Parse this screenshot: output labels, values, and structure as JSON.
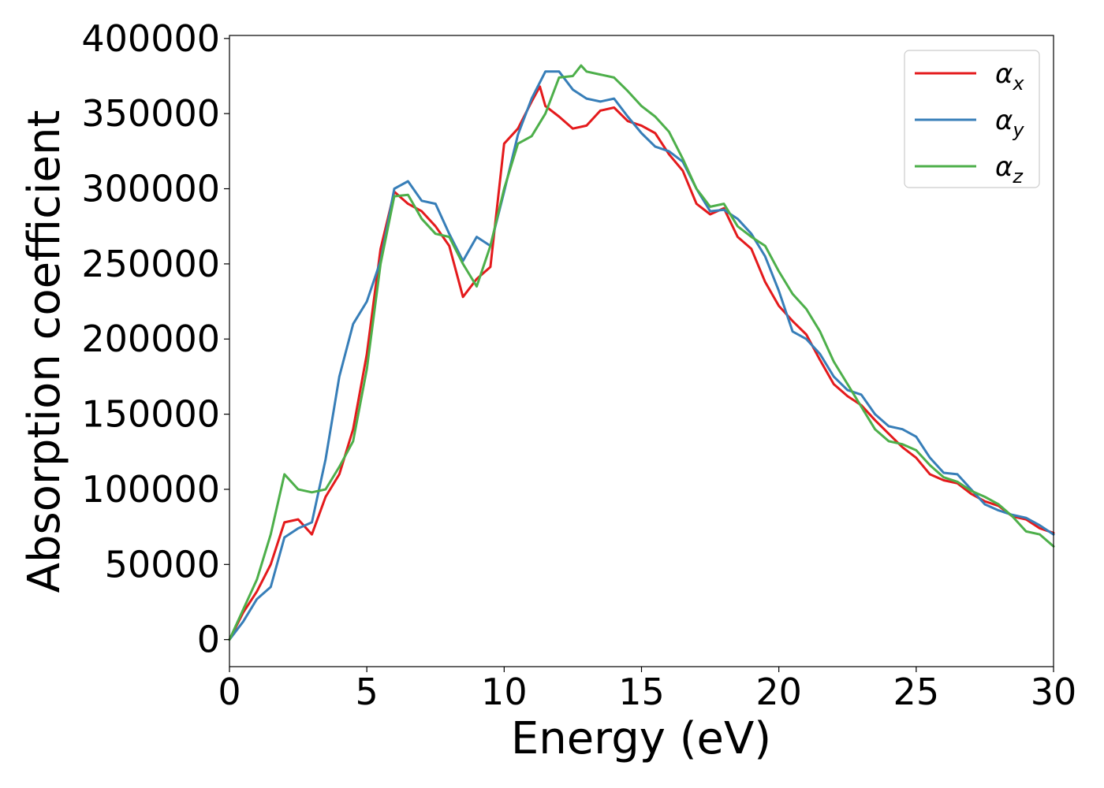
{
  "chart_data": {
    "type": "line",
    "title": "",
    "xlabel": "Energy (eV)",
    "ylabel": "Absorption coefficient",
    "xlim": [
      0,
      30
    ],
    "ylim": [
      -18000,
      402000
    ],
    "xticks": [
      0,
      5,
      10,
      15,
      20,
      25,
      30
    ],
    "yticks": [
      0,
      50000,
      100000,
      150000,
      200000,
      250000,
      300000,
      350000,
      400000
    ],
    "grid": false,
    "legend_position": "top-right",
    "series": [
      {
        "name": "α",
        "subscript": "x",
        "color": "#e41a1c",
        "x": [
          0,
          0.5,
          1,
          1.5,
          2,
          2.5,
          3,
          3.5,
          4,
          4.5,
          5,
          5.5,
          6,
          6.5,
          7,
          7.5,
          8,
          8.5,
          9,
          9.5,
          10,
          10.5,
          11,
          11.3,
          11.5,
          12,
          12.5,
          13,
          13.5,
          14,
          14.5,
          15,
          15.5,
          16,
          16.5,
          17,
          17.5,
          18,
          18.5,
          19,
          19.5,
          20,
          20.5,
          21,
          21.5,
          22,
          22.5,
          23,
          23.5,
          24,
          24.5,
          25,
          25.5,
          26,
          26.5,
          27,
          27.5,
          28,
          28.5,
          29,
          29.5,
          30
        ],
        "y": [
          0,
          18000,
          32000,
          50000,
          78000,
          80000,
          70000,
          95000,
          110000,
          140000,
          190000,
          260000,
          298000,
          290000,
          285000,
          275000,
          262000,
          228000,
          240000,
          248000,
          330000,
          340000,
          358000,
          368000,
          355000,
          348000,
          340000,
          342000,
          352000,
          354000,
          345000,
          342000,
          337000,
          323000,
          312000,
          290000,
          283000,
          287000,
          268000,
          260000,
          238000,
          222000,
          212000,
          203000,
          186000,
          170000,
          162000,
          156000,
          146000,
          137000,
          128000,
          121000,
          110000,
          106000,
          104000,
          97000,
          92000,
          89000,
          82000,
          80000,
          74000,
          71000
        ]
      },
      {
        "name": "α",
        "subscript": "y",
        "color": "#377eb8",
        "x": [
          0,
          0.5,
          1,
          1.5,
          2,
          2.5,
          3,
          3.5,
          4,
          4.5,
          5,
          5.5,
          6,
          6.5,
          7,
          7.5,
          8,
          8.5,
          9,
          9.5,
          10,
          10.5,
          11,
          11.5,
          12,
          12.5,
          13,
          13.5,
          14,
          14.5,
          15,
          15.5,
          16,
          16.5,
          17,
          17.5,
          18,
          18.5,
          19,
          19.5,
          20,
          20.5,
          21,
          21.5,
          22,
          22.5,
          23,
          23.5,
          24,
          24.5,
          25,
          25.5,
          26,
          26.5,
          27,
          27.5,
          28,
          28.5,
          29,
          29.5,
          30
        ],
        "y": [
          0,
          12000,
          27000,
          35000,
          68000,
          74000,
          78000,
          120000,
          175000,
          210000,
          225000,
          252000,
          300000,
          305000,
          292000,
          290000,
          270000,
          252000,
          268000,
          262000,
          298000,
          336000,
          360000,
          378000,
          378000,
          366000,
          360000,
          358000,
          360000,
          348000,
          337000,
          328000,
          325000,
          318000,
          300000,
          285000,
          286000,
          280000,
          270000,
          255000,
          232000,
          205000,
          200000,
          190000,
          175000,
          166000,
          163000,
          150000,
          142000,
          140000,
          135000,
          121000,
          111000,
          110000,
          100000,
          90000,
          86000,
          83000,
          81000,
          76000,
          70000
        ]
      },
      {
        "name": "α",
        "subscript": "z",
        "color": "#4daf4a",
        "x": [
          0,
          0.5,
          1,
          1.5,
          2,
          2.5,
          3,
          3.5,
          4,
          4.5,
          5,
          5.5,
          6,
          6.5,
          7,
          7.5,
          8,
          8.5,
          9,
          9.5,
          10,
          10.5,
          11,
          11.5,
          12,
          12.5,
          12.8,
          13,
          13.5,
          14,
          14.5,
          15,
          15.5,
          16,
          16.5,
          17,
          17.5,
          18,
          18.5,
          19,
          19.5,
          20,
          20.5,
          21,
          21.5,
          22,
          22.5,
          23,
          23.5,
          24,
          24.5,
          25,
          25.5,
          26,
          26.5,
          27,
          27.5,
          28,
          28.5,
          29,
          29.5,
          30
        ],
        "y": [
          0,
          20000,
          40000,
          70000,
          110000,
          100000,
          98000,
          100000,
          115000,
          132000,
          180000,
          250000,
          295000,
          296000,
          280000,
          270000,
          268000,
          250000,
          235000,
          262000,
          300000,
          330000,
          335000,
          350000,
          374000,
          375000,
          382000,
          378000,
          376000,
          374000,
          365000,
          355000,
          348000,
          338000,
          320000,
          300000,
          288000,
          290000,
          275000,
          268000,
          262000,
          245000,
          230000,
          220000,
          205000,
          185000,
          170000,
          155000,
          140000,
          132000,
          130000,
          126000,
          116000,
          108000,
          105000,
          99000,
          95000,
          90000,
          82000,
          72000,
          70000,
          62000
        ]
      }
    ]
  }
}
